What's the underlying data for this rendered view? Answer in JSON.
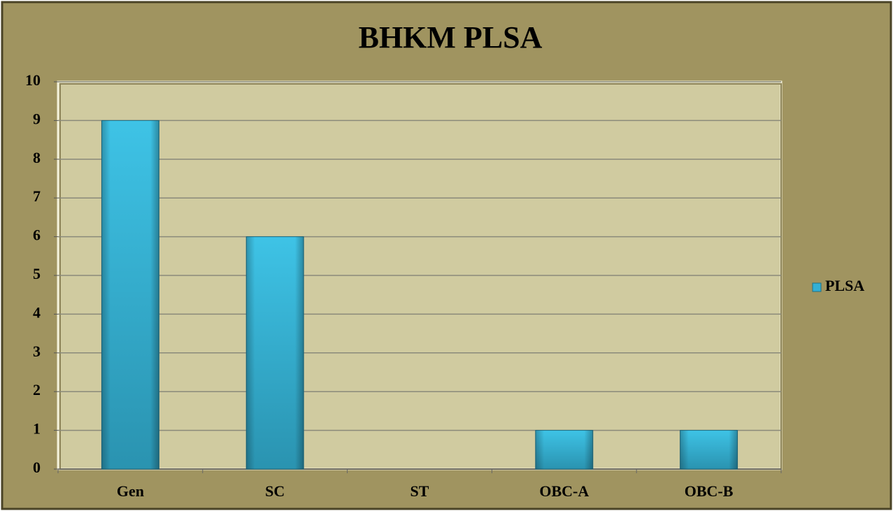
{
  "chart_data": {
    "type": "bar",
    "title": "BHKM PLSA",
    "categories": [
      "Gen",
      "SC",
      "ST",
      "OBC-A",
      "OBC-B"
    ],
    "series": [
      {
        "name": "PLSA",
        "color": "#33b0d6",
        "values": [
          9,
          6,
          0,
          1,
          1
        ]
      }
    ],
    "ylim": [
      0,
      10
    ],
    "yticks": [
      0,
      1,
      2,
      3,
      4,
      5,
      6,
      7,
      8,
      9,
      10
    ],
    "grid": true,
    "legend": "right"
  }
}
